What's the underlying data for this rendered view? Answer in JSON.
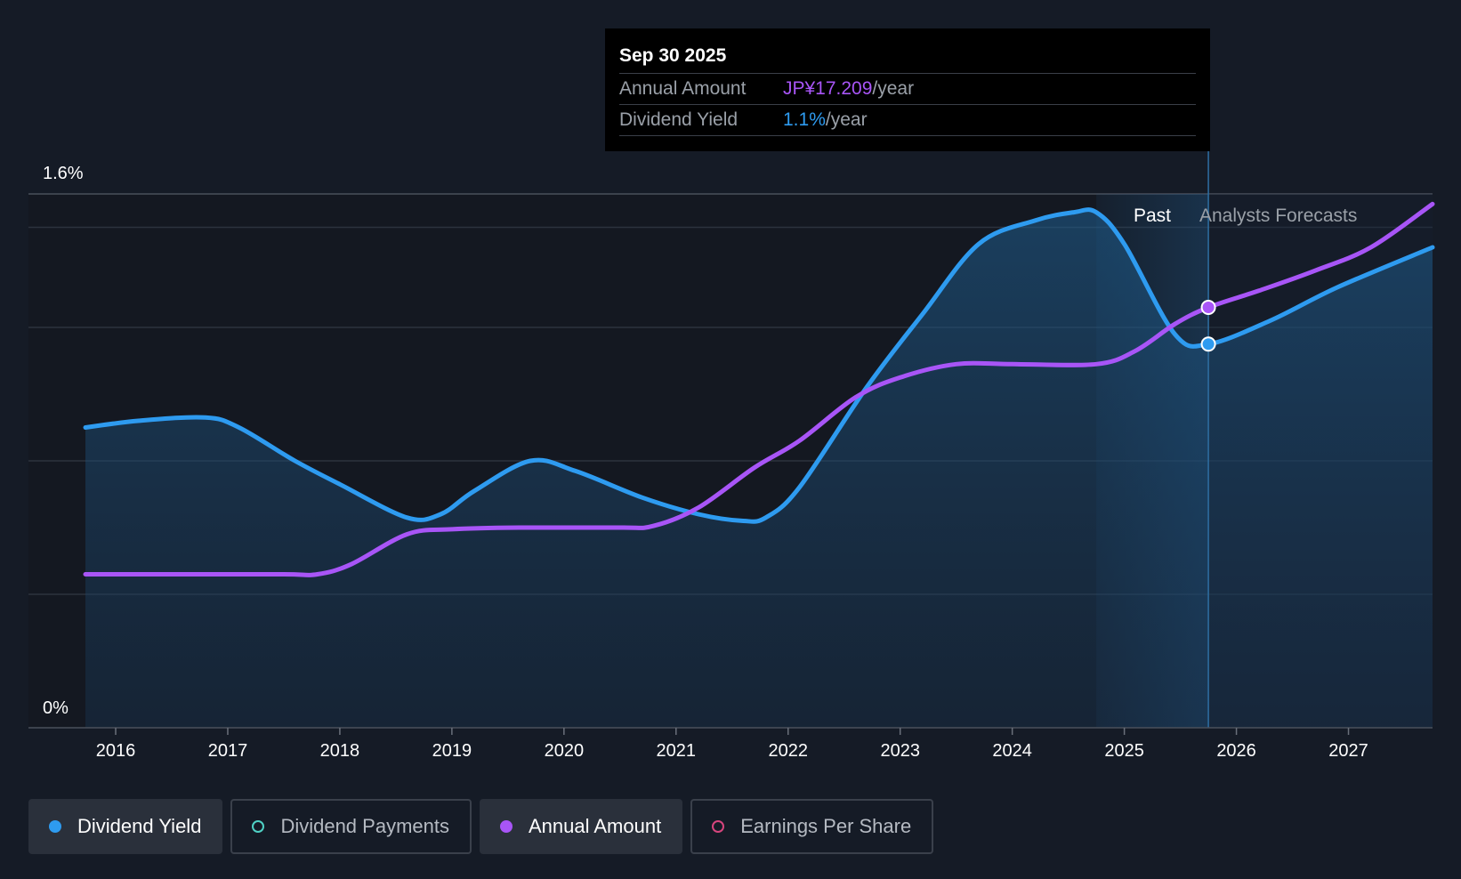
{
  "tooltip": {
    "date": "Sep 30 2025",
    "rows": [
      {
        "label": "Annual Amount",
        "value": "JP¥17.209",
        "unit": "/year",
        "color": "#a855f7"
      },
      {
        "label": "Dividend Yield",
        "value": "1.1%",
        "unit": "/year",
        "color": "#2e9bf0"
      }
    ]
  },
  "chart_data": {
    "type": "line",
    "y_tick_labels": [
      "1.6%",
      "0%"
    ],
    "ylim": [
      0,
      1.6
    ],
    "xlim": [
      2015.73,
      2027.75
    ],
    "x_tick_labels": [
      "2016",
      "2017",
      "2018",
      "2019",
      "2020",
      "2021",
      "2022",
      "2023",
      "2024",
      "2025",
      "2026",
      "2027"
    ],
    "x_ticks": [
      2016,
      2017,
      2018,
      2019,
      2020,
      2021,
      2022,
      2023,
      2024,
      2025,
      2026,
      2027
    ],
    "region_labels": {
      "past": "Past",
      "forecast": "Analysts Forecasts"
    },
    "forecast_start": 2025.75,
    "grid": true,
    "series": [
      {
        "name": "Dividend Yield",
        "color": "#2e9bf0",
        "points": [
          [
            2015.73,
            0.9
          ],
          [
            2016.2,
            0.92
          ],
          [
            2016.8,
            0.93
          ],
          [
            2017.1,
            0.9
          ],
          [
            2017.6,
            0.8
          ],
          [
            2018.0,
            0.73
          ],
          [
            2018.6,
            0.63
          ],
          [
            2018.9,
            0.64
          ],
          [
            2019.2,
            0.71
          ],
          [
            2019.7,
            0.8
          ],
          [
            2020.1,
            0.77
          ],
          [
            2020.7,
            0.69
          ],
          [
            2021.2,
            0.64
          ],
          [
            2021.6,
            0.62
          ],
          [
            2021.8,
            0.63
          ],
          [
            2022.1,
            0.72
          ],
          [
            2022.7,
            1.02
          ],
          [
            2023.2,
            1.24
          ],
          [
            2023.7,
            1.45
          ],
          [
            2024.2,
            1.52
          ],
          [
            2024.55,
            1.545
          ],
          [
            2024.75,
            1.545
          ],
          [
            2025.0,
            1.45
          ],
          [
            2025.45,
            1.18
          ],
          [
            2025.75,
            1.15
          ],
          [
            2026.3,
            1.22
          ],
          [
            2026.9,
            1.32
          ],
          [
            2027.75,
            1.44
          ]
        ]
      },
      {
        "name": "Annual Amount",
        "color": "#a855f7",
        "points": [
          [
            2015.73,
            0.46
          ],
          [
            2016.5,
            0.46
          ],
          [
            2017.5,
            0.46
          ],
          [
            2017.8,
            0.46
          ],
          [
            2018.1,
            0.49
          ],
          [
            2018.6,
            0.58
          ],
          [
            2019.0,
            0.595
          ],
          [
            2019.6,
            0.6
          ],
          [
            2020.5,
            0.6
          ],
          [
            2020.8,
            0.605
          ],
          [
            2021.2,
            0.66
          ],
          [
            2021.7,
            0.78
          ],
          [
            2022.1,
            0.86
          ],
          [
            2022.6,
            0.99
          ],
          [
            2023.0,
            1.05
          ],
          [
            2023.5,
            1.09
          ],
          [
            2024.0,
            1.09
          ],
          [
            2024.75,
            1.09
          ],
          [
            2025.1,
            1.13
          ],
          [
            2025.45,
            1.21
          ],
          [
            2025.75,
            1.26
          ],
          [
            2026.2,
            1.31
          ],
          [
            2026.7,
            1.37
          ],
          [
            2027.2,
            1.44
          ],
          [
            2027.75,
            1.57
          ]
        ]
      }
    ],
    "highlight_points": [
      {
        "series": "Annual Amount",
        "x": 2025.75,
        "y": 1.26
      },
      {
        "series": "Dividend Yield",
        "x": 2025.75,
        "y": 1.15
      }
    ]
  },
  "legend": [
    {
      "label": "Dividend Yield",
      "color": "#2e9bf0",
      "active": true,
      "filled": true
    },
    {
      "label": "Dividend Payments",
      "color": "#4fd1c5",
      "active": false,
      "filled": false
    },
    {
      "label": "Annual Amount",
      "color": "#a855f7",
      "active": true,
      "filled": true
    },
    {
      "label": "Earnings Per Share",
      "color": "#d6457d",
      "active": false,
      "filled": false
    }
  ]
}
